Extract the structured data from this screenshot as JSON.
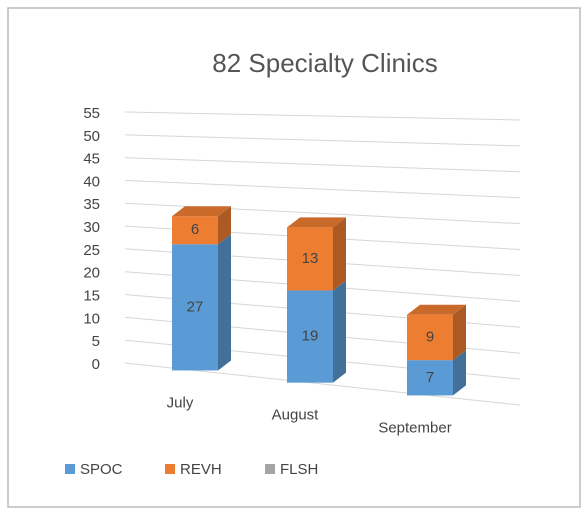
{
  "chart_data": {
    "type": "bar3d_stacked",
    "title": "82 Specialty Clinics",
    "categories": [
      "July",
      "August",
      "September"
    ],
    "series": [
      {
        "name": "SPOC",
        "color": "#5b9bd5",
        "values": [
          27,
          19,
          7
        ]
      },
      {
        "name": "REVH",
        "color": "#ed7d31",
        "values": [
          6,
          13,
          9
        ]
      },
      {
        "name": "FLSH",
        "color": "#a5a5a5",
        "values": [
          0,
          0,
          0
        ]
      }
    ],
    "ylim": [
      0,
      55
    ],
    "yticks": [
      0,
      5,
      10,
      15,
      20,
      25,
      30,
      35,
      40,
      45,
      50,
      55
    ],
    "grid": true,
    "legend": "bottom"
  }
}
